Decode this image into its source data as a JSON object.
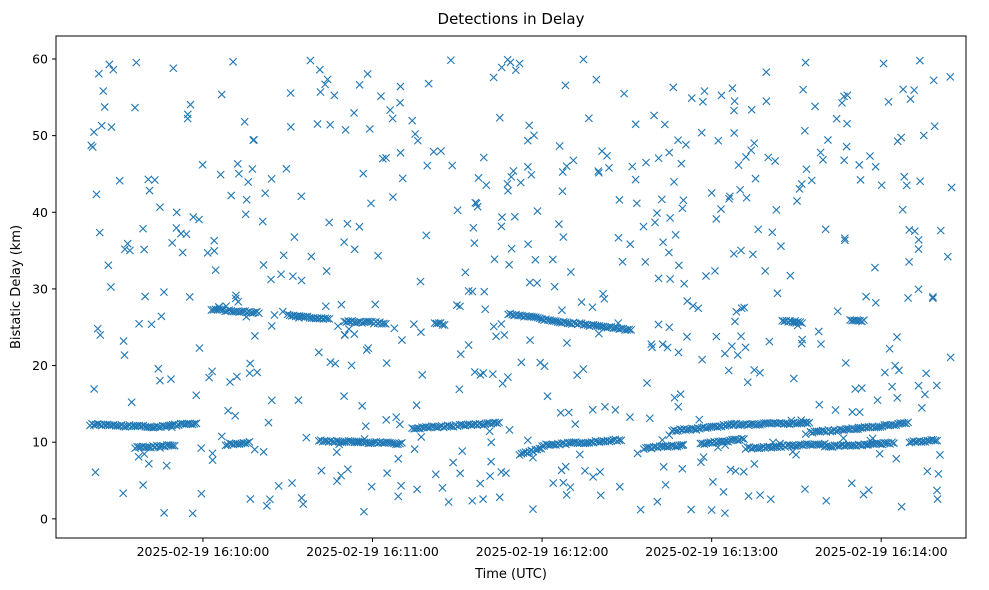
{
  "chart_data": {
    "type": "scatter",
    "title": "Detections in Delay",
    "xlabel": "Time (UTC)",
    "ylabel": "Bistatic Delay (km)",
    "marker": "x",
    "color": "#1f77b4",
    "xlim": [
      "2025-02-19 16:09:08",
      "2025-02-19 16:14:30"
    ],
    "ylim": [
      -2.5,
      63
    ],
    "x_ticks": [
      "2025-02-19 16:10:00",
      "2025-02-19 16:11:00",
      "2025-02-19 16:12:00",
      "2025-02-19 16:13:00",
      "2025-02-19 16:14:00"
    ],
    "y_ticks": [
      0,
      10,
      20,
      30,
      40,
      50,
      60
    ],
    "grid": false,
    "tracks": [
      {
        "start": "2025-02-19 16:09:20",
        "end": "2025-02-19 16:09:43",
        "y_start": 12.3,
        "y_end": 12.0
      },
      {
        "start": "2025-02-19 16:09:43",
        "end": "2025-02-19 16:09:58",
        "y_start": 12.0,
        "y_end": 12.5
      },
      {
        "start": "2025-02-19 16:09:36",
        "end": "2025-02-19 16:09:50",
        "y_start": 9.3,
        "y_end": 9.6
      },
      {
        "start": "2025-02-19 16:10:08",
        "end": "2025-02-19 16:10:17",
        "y_start": 9.7,
        "y_end": 10.0
      },
      {
        "start": "2025-02-19 16:10:41",
        "end": "2025-02-19 16:11:11",
        "y_start": 10.2,
        "y_end": 9.8
      },
      {
        "start": "2025-02-19 16:11:14",
        "end": "2025-02-19 16:11:45",
        "y_start": 11.8,
        "y_end": 12.5
      },
      {
        "start": "2025-02-19 16:10:03",
        "end": "2025-02-19 16:10:20",
        "y_start": 27.3,
        "y_end": 26.9
      },
      {
        "start": "2025-02-19 16:10:30",
        "end": "2025-02-19 16:10:45",
        "y_start": 26.6,
        "y_end": 26.0
      },
      {
        "start": "2025-02-19 16:10:50",
        "end": "2025-02-19 16:11:05",
        "y_start": 25.8,
        "y_end": 25.5
      },
      {
        "start": "2025-02-19 16:11:22",
        "end": "2025-02-19 16:11:26",
        "y_start": 25.6,
        "y_end": 25.3
      },
      {
        "start": "2025-02-19 16:11:48",
        "end": "2025-02-19 16:12:00",
        "y_start": 26.7,
        "y_end": 26.2
      },
      {
        "start": "2025-02-19 16:12:00",
        "end": "2025-02-19 16:12:32",
        "y_start": 26.0,
        "y_end": 24.6
      },
      {
        "start": "2025-02-19 16:11:52",
        "end": "2025-02-19 16:12:00",
        "y_start": 8.4,
        "y_end": 9.2
      },
      {
        "start": "2025-02-19 16:12:00",
        "end": "2025-02-19 16:12:28",
        "y_start": 9.6,
        "y_end": 10.3
      },
      {
        "start": "2025-02-19 16:12:36",
        "end": "2025-02-19 16:12:50",
        "y_start": 9.2,
        "y_end": 9.6
      },
      {
        "start": "2025-02-19 16:12:46",
        "end": "2025-02-19 16:13:08",
        "y_start": 11.5,
        "y_end": 12.3
      },
      {
        "start": "2025-02-19 16:12:56",
        "end": "2025-02-19 16:13:12",
        "y_start": 9.8,
        "y_end": 10.4
      },
      {
        "start": "2025-02-19 16:13:08",
        "end": "2025-02-19 16:13:35",
        "y_start": 12.3,
        "y_end": 12.5
      },
      {
        "start": "2025-02-19 16:13:12",
        "end": "2025-02-19 16:13:40",
        "y_start": 9.2,
        "y_end": 9.8
      },
      {
        "start": "2025-02-19 16:13:35",
        "end": "2025-02-19 16:13:52",
        "y_start": 11.3,
        "y_end": 11.8
      },
      {
        "start": "2025-02-19 16:13:40",
        "end": "2025-02-19 16:14:05",
        "y_start": 9.4,
        "y_end": 9.9
      },
      {
        "start": "2025-02-19 16:13:52",
        "end": "2025-02-19 16:14:10",
        "y_start": 11.8,
        "y_end": 12.5
      },
      {
        "start": "2025-02-19 16:14:10",
        "end": "2025-02-19 16:14:20",
        "y_start": 10.0,
        "y_end": 10.3
      },
      {
        "start": "2025-02-19 16:13:25",
        "end": "2025-02-19 16:13:32",
        "y_start": 25.8,
        "y_end": 25.6
      },
      {
        "start": "2025-02-19 16:13:49",
        "end": "2025-02-19 16:13:54",
        "y_start": 26.0,
        "y_end": 25.8
      }
    ],
    "clutter_points": 600,
    "clutter_y_range": [
      0.5,
      60
    ],
    "clutter_seed": 2025
  }
}
